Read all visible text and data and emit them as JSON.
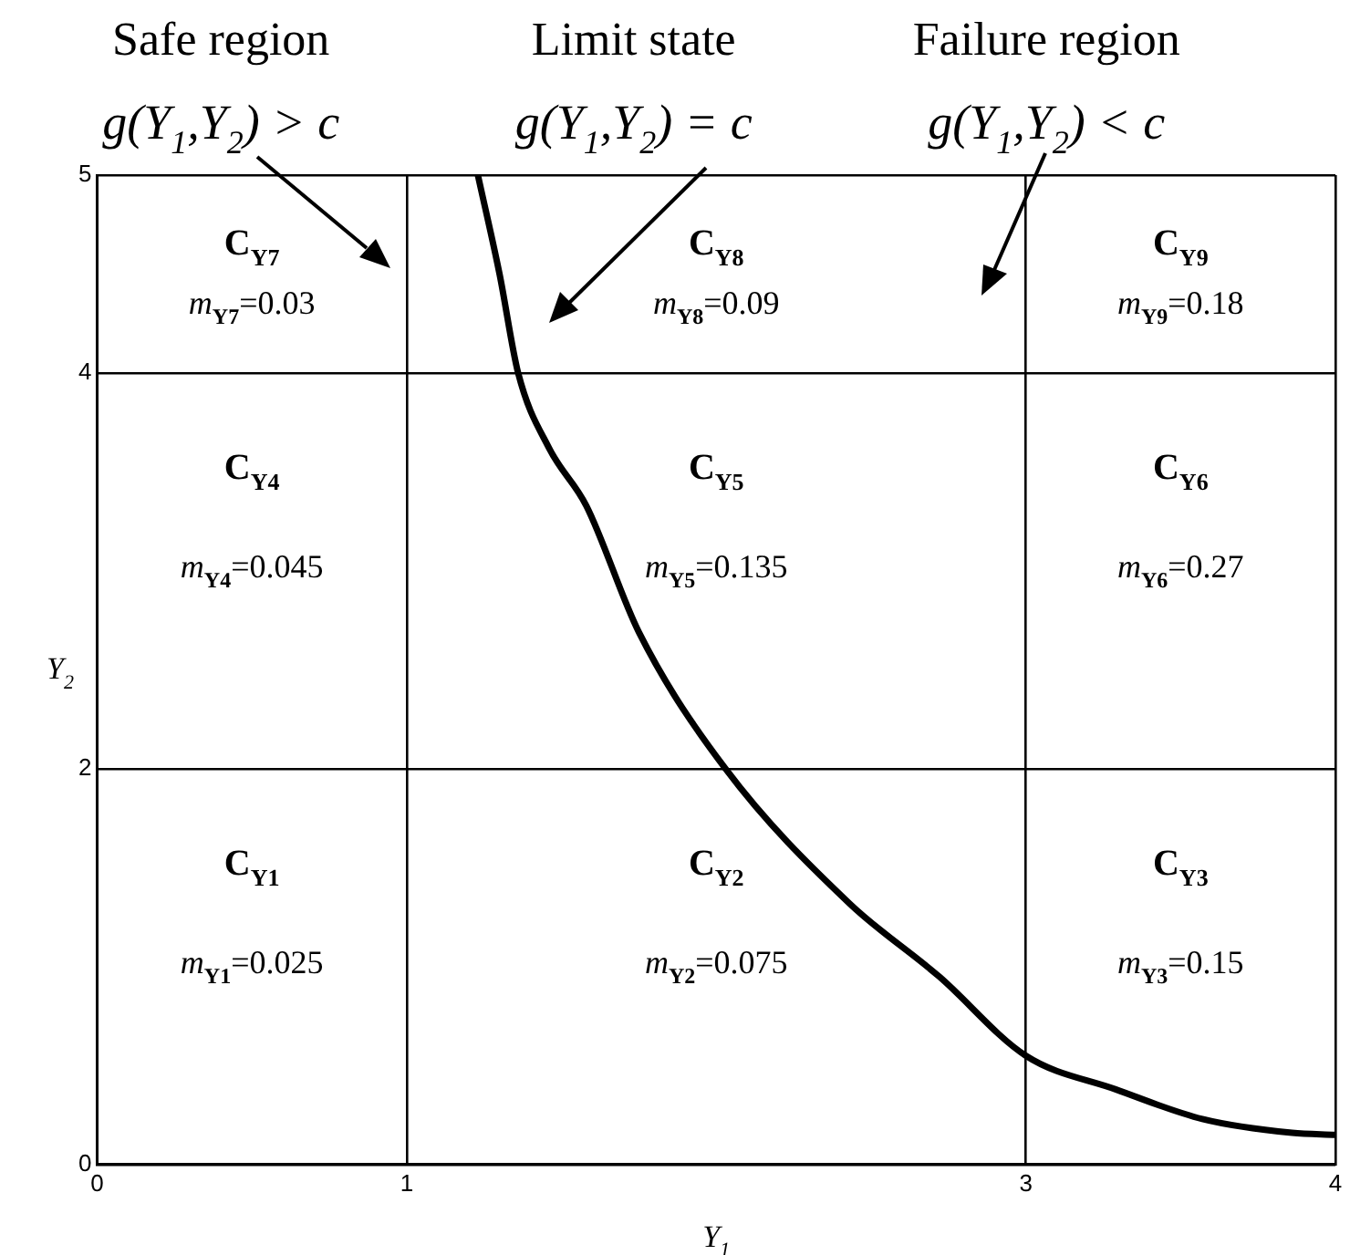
{
  "chart_data": {
    "type": "line",
    "xlabel": "Y$_{1}$",
    "ylabel": "Y$_{2}$",
    "xlim": [
      0,
      4
    ],
    "ylim": [
      0,
      5
    ],
    "xticks": [
      0,
      1,
      3,
      4
    ],
    "yticks": [
      0,
      2,
      4,
      5
    ],
    "grid": true,
    "marker": "none",
    "line_style": "solid",
    "series": [
      {
        "color": "#000000",
        "x": [
          1.23,
          1.3,
          1.36,
          1.46,
          1.58,
          1.75,
          2.03,
          2.43,
          2.72,
          3,
          3.29,
          3.57,
          3.86,
          4
        ],
        "values": [
          5,
          4.5,
          4,
          3.62,
          3.33,
          2.69,
          2,
          1.32,
          0.95,
          0.55,
          0.38,
          0.23,
          0.16,
          0.15
        ]
      }
    ],
    "annotations": [
      "Safe region\ng(Y$_{1}$,Y$_{2}$) > c",
      "Limit state\ng(Y$_{1}$,Y$_{2}$) = c",
      "Failure region\ng(Y$_{1}$,Y$_{2}$) < c",
      "C$_{Y7}$",
      "m$_{Y7}$=0.03",
      "C$_{Y8}$",
      "m$_{Y8}$=0.09",
      "C$_{Y9}$",
      "m$_{Y9}$=0.18",
      "C$_{Y4}$",
      "m$_{Y4}$=0.045",
      "C$_{Y5}$",
      "m$_{Y5}$=0.135",
      "C$_{Y6}$",
      "m$_{Y6}$=0.27",
      "C$_{Y1}$",
      "m$_{Y1}$=0.025",
      "C$_{Y2}$",
      "m$_{Y2}$=0.075",
      "C$_{Y3}$",
      "m$_{Y3}$=0.15"
    ]
  }
}
